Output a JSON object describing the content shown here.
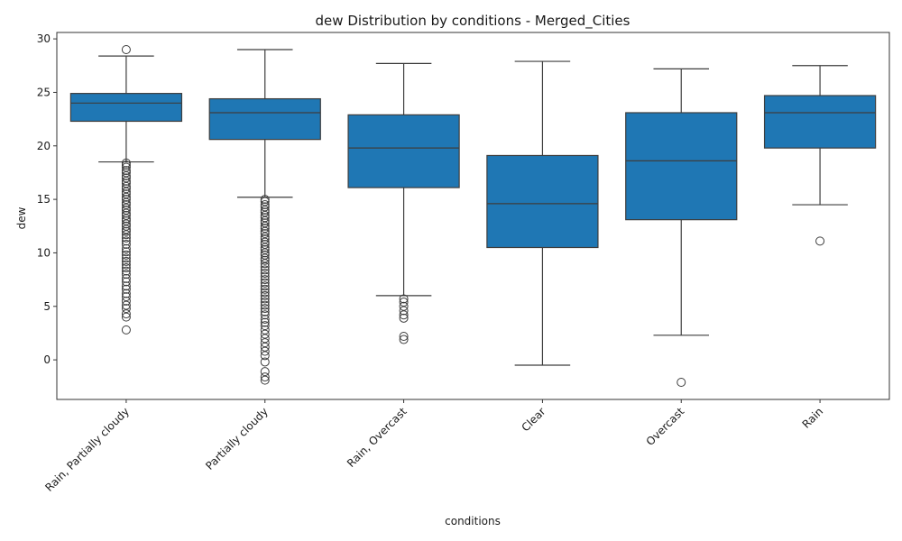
{
  "chart_data": {
    "type": "box",
    "title": "dew Distribution by conditions - Merged_Cities",
    "xlabel": "conditions",
    "ylabel": "dew",
    "ylim": [
      -3.7,
      30.6
    ],
    "yticks": [
      0,
      5,
      10,
      15,
      20,
      25,
      30
    ],
    "box_color": "#1f77b4",
    "categories": [
      "Rain, Partially cloudy",
      "Partially cloudy",
      "Rain, Overcast",
      "Clear",
      "Overcast",
      "Rain"
    ],
    "boxes": [
      {
        "category": "Rain, Partially cloudy",
        "whisker_low": 18.5,
        "q1": 22.3,
        "median": 24.0,
        "q3": 24.9,
        "whisker_high": 28.4,
        "fliers": [
          29.0,
          18.4,
          18.2,
          18.0,
          17.7,
          17.5,
          17.2,
          17.0,
          16.7,
          16.5,
          16.2,
          16.0,
          15.7,
          15.5,
          15.2,
          15.0,
          14.7,
          14.5,
          14.2,
          14.0,
          13.7,
          13.5,
          13.2,
          13.0,
          12.7,
          12.5,
          12.2,
          12.0,
          11.7,
          11.4,
          11.1,
          10.8,
          10.4,
          10.1,
          9.8,
          9.5,
          9.2,
          8.9,
          8.6,
          8.3,
          8.0,
          7.6,
          7.3,
          6.9,
          6.6,
          6.2,
          5.9,
          5.5,
          5.1,
          4.8,
          4.3,
          4.0,
          2.8
        ]
      },
      {
        "category": "Partially cloudy",
        "whisker_low": 15.2,
        "q1": 20.6,
        "median": 23.1,
        "q3": 24.4,
        "whisker_high": 29.0,
        "fliers": [
          15.0,
          14.8,
          14.5,
          14.3,
          14.0,
          13.8,
          13.5,
          13.3,
          13.0,
          12.8,
          12.5,
          12.3,
          12.0,
          11.8,
          11.5,
          11.3,
          11.0,
          10.8,
          10.5,
          10.3,
          10.0,
          9.8,
          9.5,
          9.3,
          9.0,
          8.7,
          8.4,
          8.1,
          7.8,
          7.5,
          7.2,
          6.9,
          6.6,
          6.3,
          6.0,
          5.7,
          5.4,
          5.1,
          4.8,
          4.5,
          4.2,
          3.8,
          3.5,
          3.2,
          2.8,
          2.4,
          2.0,
          1.6,
          1.2,
          0.8,
          0.4,
          -0.2,
          -1.1,
          -1.6,
          -1.9
        ]
      },
      {
        "category": "Rain, Overcast",
        "whisker_low": 6.0,
        "q1": 16.1,
        "median": 19.8,
        "q3": 22.9,
        "whisker_high": 27.7,
        "fliers": [
          5.7,
          5.4,
          5.0,
          4.6,
          4.2,
          3.9,
          2.2,
          1.9
        ]
      },
      {
        "category": "Clear",
        "whisker_low": -0.5,
        "q1": 10.5,
        "median": 14.6,
        "q3": 19.1,
        "whisker_high": 27.9,
        "fliers": []
      },
      {
        "category": "Overcast",
        "whisker_low": 2.3,
        "q1": 13.1,
        "median": 18.6,
        "q3": 23.1,
        "whisker_high": 27.2,
        "fliers": [
          -2.1
        ]
      },
      {
        "category": "Rain",
        "whisker_low": 14.5,
        "q1": 19.8,
        "median": 23.1,
        "q3": 24.7,
        "whisker_high": 27.5,
        "fliers": [
          11.1
        ]
      }
    ]
  }
}
